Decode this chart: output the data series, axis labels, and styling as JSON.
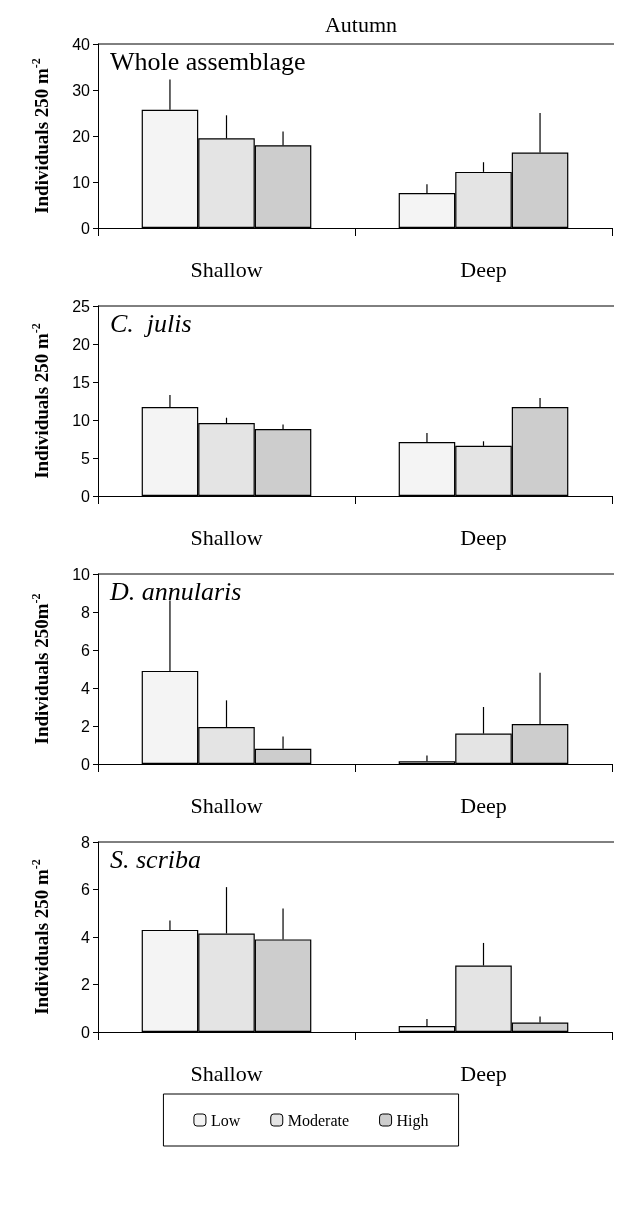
{
  "chart_data": [
    {
      "type": "bar",
      "title": "Autumn",
      "ylabel": "Individuals 250 m$^{-2}$",
      "annotations": [
        "Whole assemblage"
      ],
      "categories": [
        "Shallow",
        "Deep"
      ],
      "ylim": [
        0,
        40
      ],
      "yticks": [
        0,
        10,
        20,
        30,
        40
      ],
      "grid": false,
      "legend": false,
      "series": [
        {
          "color": "#f4f4f4",
          "values": [
            25.7,
            7.6
          ],
          "errors": [
            [
              25.7,
              32.3
            ],
            [
              7.6,
              9.5
            ]
          ]
        },
        {
          "color": "#e4e4e4",
          "values": [
            19.5,
            12.2
          ],
          "errors": [
            [
              19.5,
              24.5
            ],
            [
              12.2,
              14.3
            ]
          ]
        },
        {
          "color": "#cdcdcd",
          "values": [
            18,
            16.4
          ],
          "errors": [
            [
              18,
              21
            ],
            [
              16.4,
              25
            ]
          ]
        }
      ]
    },
    {
      "type": "bar",
      "ylabel": "Individuals 250 m$^{-2}$",
      "annotations": [
        "C.  julis"
      ],
      "categories": [
        "Shallow",
        "Deep"
      ],
      "ylim": [
        0,
        25
      ],
      "yticks": [
        0,
        5,
        10,
        15,
        20,
        25
      ],
      "grid": false,
      "legend": false,
      "series": [
        {
          "color": "#f4f4f4",
          "values": [
            11.7,
            7.1
          ],
          "errors": [
            [
              11.7,
              13.3
            ],
            [
              7.1,
              8.3
            ]
          ]
        },
        {
          "color": "#e4e4e4",
          "values": [
            9.6,
            6.6
          ],
          "errors": [
            [
              9.6,
              10.3
            ],
            [
              6.6,
              7.2
            ]
          ]
        },
        {
          "color": "#cdcdcd",
          "values": [
            8.8,
            11.7
          ],
          "errors": [
            [
              8.8,
              9.4
            ],
            [
              11.7,
              12.9
            ]
          ]
        }
      ]
    },
    {
      "type": "bar",
      "ylabel": "Individuals 250m$^{-2}$",
      "annotations": [
        "D. annularis"
      ],
      "categories": [
        "Shallow",
        "Deep"
      ],
      "ylim": [
        0,
        10
      ],
      "yticks": [
        0,
        2,
        4,
        6,
        8,
        10
      ],
      "grid": false,
      "legend": false,
      "series": [
        {
          "color": "#f4f4f4",
          "values": [
            4.9,
            0.15
          ],
          "errors": [
            [
              4.9,
              8.6
            ],
            [
              0.15,
              0.45
            ]
          ]
        },
        {
          "color": "#e4e4e4",
          "values": [
            1.95,
            1.6
          ],
          "errors": [
            [
              1.95,
              3.35
            ],
            [
              1.6,
              3.0
            ]
          ]
        },
        {
          "color": "#cdcdcd",
          "values": [
            0.8,
            2.1
          ],
          "errors": [
            [
              0.8,
              1.45
            ],
            [
              2.1,
              4.8
            ]
          ]
        }
      ]
    },
    {
      "type": "bar",
      "ylabel": "Individuals 250 m$^{-2}$",
      "annotations": [
        "S. scriba"
      ],
      "categories": [
        "Shallow",
        "Deep"
      ],
      "ylim": [
        0,
        8
      ],
      "yticks": [
        0,
        2,
        4,
        6,
        8
      ],
      "grid": false,
      "legend": "bottom",
      "series": [
        {
          "name": "Low",
          "color": "#f4f4f4",
          "values": [
            4.3,
            0.25
          ],
          "errors": [
            [
              4.3,
              4.7
            ],
            [
              0.25,
              0.55
            ]
          ]
        },
        {
          "name": "Moderate",
          "color": "#e4e4e4",
          "values": [
            4.15,
            2.8
          ],
          "errors": [
            [
              4.15,
              6.1
            ],
            [
              2.8,
              3.75
            ]
          ]
        },
        {
          "name": "High",
          "color": "#cdcdcd",
          "values": [
            3.9,
            0.4
          ],
          "errors": [
            [
              3.9,
              5.2
            ],
            [
              0.4,
              0.65
            ]
          ]
        }
      ]
    }
  ]
}
